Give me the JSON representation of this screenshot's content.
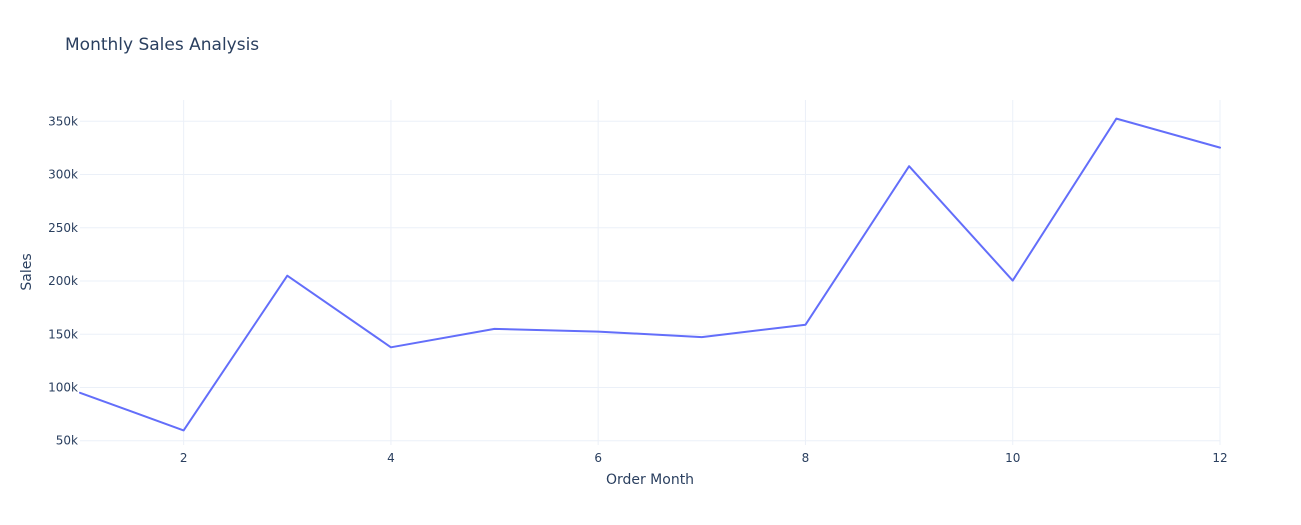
{
  "chart_data": {
    "type": "line",
    "title": "Monthly Sales Analysis",
    "xlabel": "Order Month",
    "ylabel": "Sales",
    "xlim": [
      1,
      12
    ],
    "ylim": [
      46000,
      370000
    ],
    "x_ticks": [
      2,
      4,
      6,
      8,
      10,
      12
    ],
    "x_tick_labels": [
      "2",
      "4",
      "6",
      "8",
      "10",
      "12"
    ],
    "y_ticks": [
      50000,
      100000,
      150000,
      200000,
      250000,
      300000,
      350000
    ],
    "y_tick_labels": [
      "50k",
      "100k",
      "150k",
      "200k",
      "250k",
      "300k",
      "350k"
    ],
    "grid": true,
    "series": [
      {
        "color": "#636efa",
        "x": [
          1,
          2,
          3,
          4,
          5,
          6,
          7,
          8,
          9,
          10,
          11,
          12
        ],
        "values": [
          95000,
          59700,
          205000,
          137800,
          155000,
          152500,
          147300,
          159000,
          307800,
          200400,
          352500,
          325300
        ]
      }
    ]
  }
}
